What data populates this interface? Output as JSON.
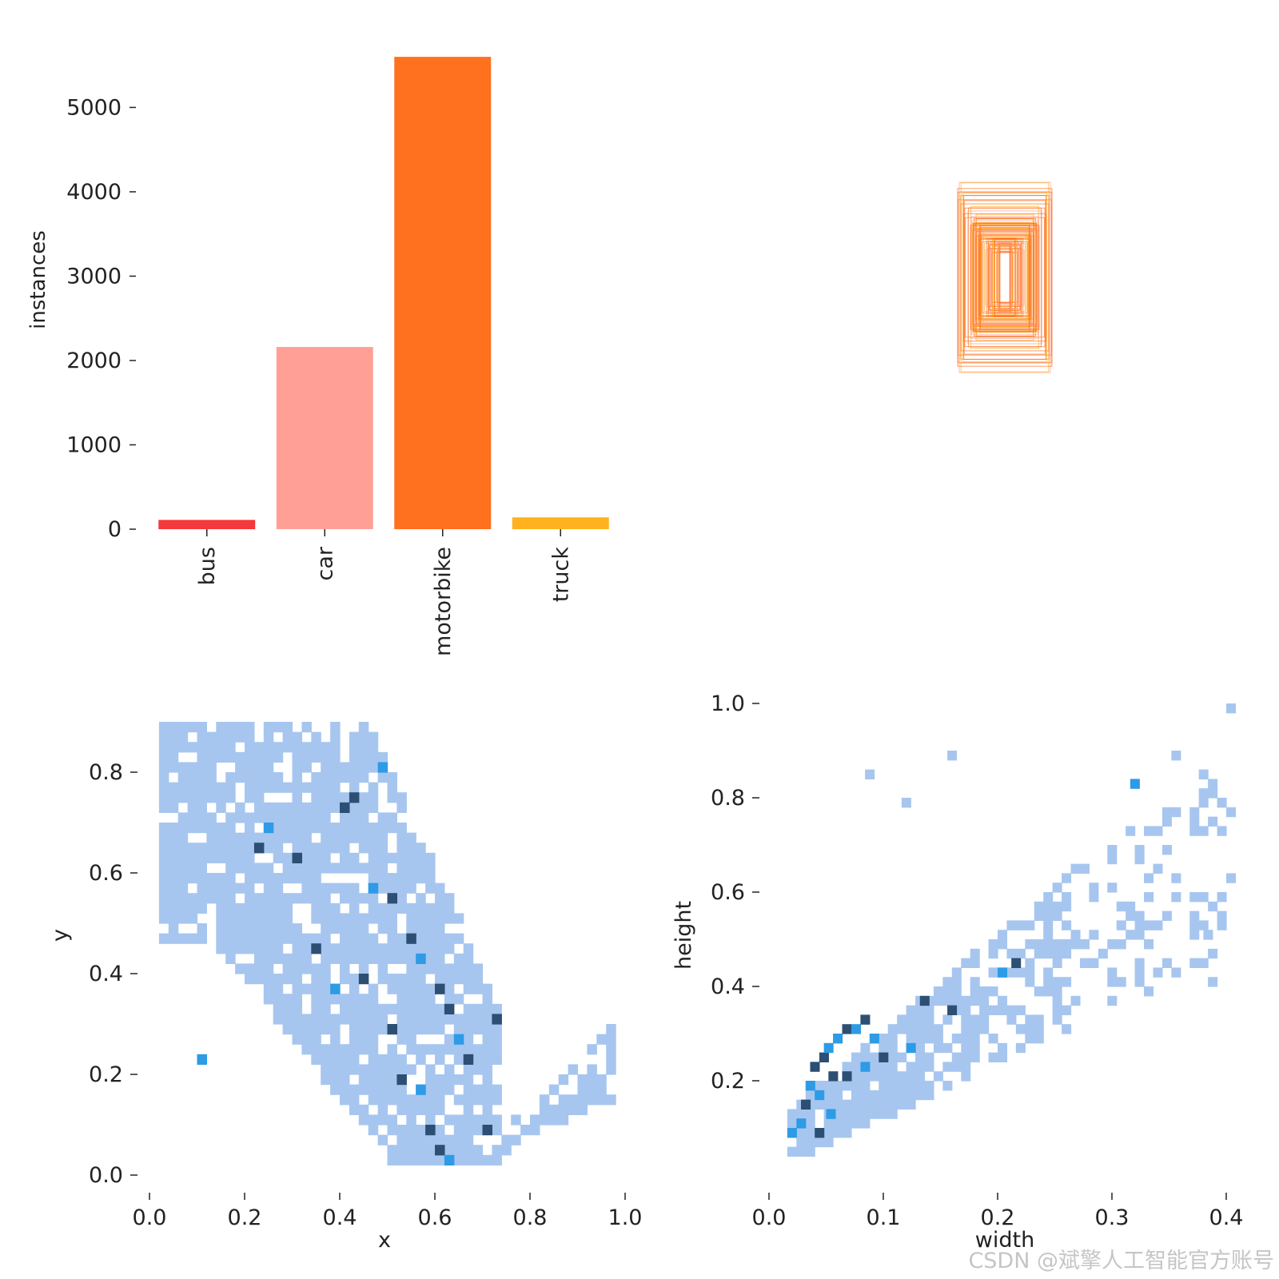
{
  "colors": {
    "bus": "#f5383b",
    "car": "#ff9f96",
    "motorbike": "#ff701f",
    "truck": "#ffb21d",
    "hist_light": "#a7c6ef",
    "hist_mid": "#2d9be6",
    "hist_dark": "#2c4f73",
    "text": "#222222"
  },
  "watermark": "CSDN @斌擎人工智能官方账号",
  "chart_data": [
    {
      "id": "instances",
      "type": "bar",
      "title": "",
      "xlabel": "",
      "ylabel": "instances",
      "categories": [
        "bus",
        "car",
        "motorbike",
        "truck"
      ],
      "values": [
        110,
        2160,
        5600,
        140
      ],
      "ylim": [
        0,
        5800
      ],
      "yticks": [
        0,
        1000,
        2000,
        3000,
        4000,
        5000
      ],
      "ytick_labels": [
        "0",
        "1000",
        "2000",
        "3000",
        "4000",
        "5000"
      ],
      "bar_colors": [
        "#f5383b",
        "#ff9f96",
        "#ff701f",
        "#ffb21d"
      ]
    },
    {
      "id": "boxes",
      "type": "other",
      "description_kind": "overlay of sample label box outlines centered in frame",
      "legend": ""
    },
    {
      "id": "xy",
      "type": "heatmap",
      "xlabel": "x",
      "ylabel": "y",
      "xlim": [
        0,
        1
      ],
      "ylim": [
        0,
        0.9
      ],
      "xticks": [
        0.0,
        0.2,
        0.4,
        0.6,
        0.8,
        1.0
      ],
      "xtick_labels": [
        "0.0",
        "0.2",
        "0.4",
        "0.6",
        "0.8",
        "1.0"
      ],
      "yticks": [
        0.0,
        0.2,
        0.4,
        0.6,
        0.8
      ],
      "ytick_labels": [
        "0.0",
        "0.2",
        "0.4",
        "0.6",
        "0.8"
      ],
      "cell_size": [
        0.02,
        0.02
      ],
      "hot_cells": [
        [
          0.48,
          0.8
        ],
        [
          0.4,
          0.72
        ],
        [
          0.42,
          0.74
        ],
        [
          0.24,
          0.68
        ],
        [
          0.22,
          0.64
        ],
        [
          0.3,
          0.62
        ],
        [
          0.46,
          0.56
        ],
        [
          0.5,
          0.54
        ],
        [
          0.54,
          0.46
        ],
        [
          0.56,
          0.42
        ],
        [
          0.6,
          0.36
        ],
        [
          0.62,
          0.32
        ],
        [
          0.64,
          0.26
        ],
        [
          0.66,
          0.22
        ],
        [
          0.52,
          0.18
        ],
        [
          0.56,
          0.16
        ],
        [
          0.58,
          0.08
        ],
        [
          0.6,
          0.04
        ],
        [
          0.62,
          0.02
        ],
        [
          0.7,
          0.08
        ],
        [
          0.34,
          0.44
        ],
        [
          0.1,
          0.22
        ],
        [
          0.72,
          0.3
        ],
        [
          0.44,
          0.38
        ],
        [
          0.38,
          0.36
        ],
        [
          0.5,
          0.28
        ]
      ]
    },
    {
      "id": "wh",
      "type": "heatmap",
      "xlabel": "width",
      "ylabel": "height",
      "xlim": [
        0,
        0.4
      ],
      "ylim": [
        0,
        1.0
      ],
      "xticks": [
        0.0,
        0.1,
        0.2,
        0.3,
        0.4
      ],
      "xtick_labels": [
        "0.0",
        "0.1",
        "0.2",
        "0.3",
        "0.4"
      ],
      "yticks": [
        0.2,
        0.4,
        0.6,
        0.8,
        1.0
      ],
      "ytick_labels": [
        "0.2",
        "0.4",
        "0.6",
        "0.8",
        "1.0"
      ],
      "cell_size": [
        0.008,
        0.02
      ],
      "trend": "height ≈ 1.6 × width + 0.05",
      "hot_cells": [
        [
          0.024,
          0.1
        ],
        [
          0.028,
          0.14
        ],
        [
          0.032,
          0.18
        ],
        [
          0.036,
          0.22
        ],
        [
          0.04,
          0.16
        ],
        [
          0.044,
          0.24
        ],
        [
          0.048,
          0.26
        ],
        [
          0.052,
          0.2
        ],
        [
          0.056,
          0.28
        ],
        [
          0.064,
          0.3
        ],
        [
          0.072,
          0.3
        ],
        [
          0.08,
          0.32
        ],
        [
          0.088,
          0.28
        ],
        [
          0.096,
          0.24
        ],
        [
          0.08,
          0.22
        ],
        [
          0.064,
          0.2
        ],
        [
          0.05,
          0.12
        ],
        [
          0.04,
          0.08
        ],
        [
          0.016,
          0.08
        ],
        [
          0.156,
          0.34
        ],
        [
          0.2,
          0.42
        ],
        [
          0.212,
          0.44
        ],
        [
          0.316,
          0.82
        ],
        [
          0.132,
          0.36
        ],
        [
          0.12,
          0.26
        ]
      ],
      "outliers": [
        [
          0.4,
          0.98
        ],
        [
          0.156,
          0.88
        ],
        [
          0.084,
          0.84
        ],
        [
          0.116,
          0.78
        ],
        [
          0.352,
          0.88
        ],
        [
          0.384,
          0.8
        ],
        [
          0.4,
          0.76
        ],
        [
          0.376,
          0.72
        ],
        [
          0.4,
          0.62
        ],
        [
          0.392,
          0.58
        ],
        [
          0.38,
          0.5
        ],
        [
          0.384,
          0.4
        ]
      ]
    }
  ]
}
